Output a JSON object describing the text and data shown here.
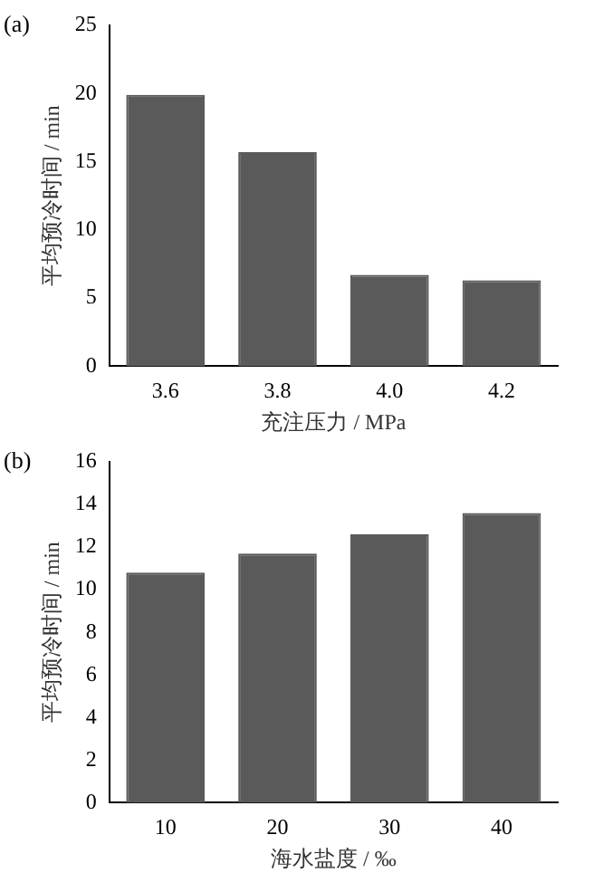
{
  "chart_data": [
    {
      "type": "bar",
      "title": "(a)",
      "categories": [
        "3.6",
        "3.8",
        "4.0",
        "4.2"
      ],
      "values": [
        19.9,
        15.7,
        6.7,
        6.3
      ],
      "color": "#5a5a5a",
      "xlabel": "充注压力 / MPa",
      "ylabel": "平均预冷时间 / min",
      "ylim": [
        0,
        25
      ],
      "yticks": [
        0,
        5,
        10,
        15,
        20,
        25
      ],
      "grid": false,
      "legend": false
    },
    {
      "type": "bar",
      "title": "(b)",
      "categories": [
        "10",
        "20",
        "30",
        "40"
      ],
      "values": [
        10.8,
        11.7,
        12.6,
        13.6
      ],
      "color": "#5a5a5a",
      "xlabel": "海水盐度 / ‰",
      "ylabel": "平均预冷时间 / min",
      "ylim": [
        0,
        16
      ],
      "yticks": [
        0,
        2,
        4,
        6,
        8,
        10,
        12,
        14,
        16
      ],
      "grid": false,
      "legend": false
    }
  ]
}
